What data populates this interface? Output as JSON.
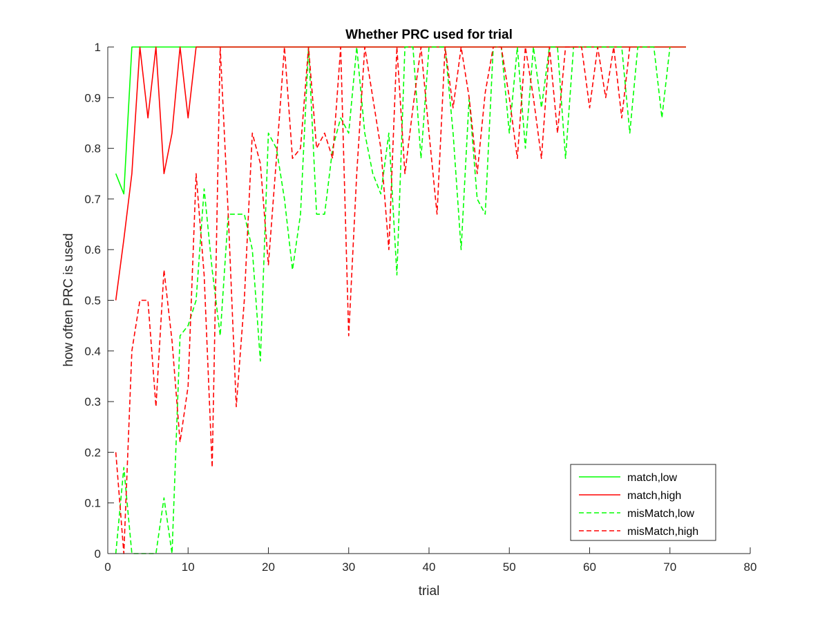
{
  "chart_data": {
    "type": "line",
    "title": "Whether PRC used for trial",
    "xlabel": "trial",
    "ylabel": "how often PRC is used",
    "xlim": [
      0,
      80
    ],
    "ylim": [
      0,
      1
    ],
    "xticks": [
      "0",
      "10",
      "20",
      "30",
      "40",
      "50",
      "60",
      "70",
      "80"
    ],
    "yticks": [
      "0",
      "0.1",
      "0.2",
      "0.3",
      "0.4",
      "0.5",
      "0.6",
      "0.7",
      "0.8",
      "0.9",
      "1"
    ],
    "grid": false,
    "legend_position": "bottom-right",
    "series": [
      {
        "name": "match,low",
        "color": "#00ff00",
        "dash": "solid",
        "x": [
          1,
          2,
          3,
          4,
          5,
          6,
          7,
          8,
          9,
          10,
          11,
          12,
          15,
          20,
          30,
          40,
          50,
          60,
          70,
          72
        ],
        "y": [
          0.75,
          0.71,
          1,
          1,
          1,
          1,
          1,
          1,
          1,
          1,
          1,
          1,
          1,
          1,
          1,
          1,
          1,
          1,
          1,
          1
        ]
      },
      {
        "name": "match,high",
        "color": "#ff0000",
        "dash": "solid",
        "x": [
          1,
          2,
          3,
          4,
          5,
          6,
          7,
          8,
          9,
          10,
          11,
          12,
          15,
          20,
          30,
          40,
          50,
          60,
          70,
          72
        ],
        "y": [
          0.5,
          0.62,
          0.75,
          1,
          0.86,
          1,
          0.75,
          0.83,
          1,
          0.86,
          1,
          1,
          1,
          1,
          1,
          1,
          1,
          1,
          1,
          1
        ]
      },
      {
        "name": "misMatch,low",
        "color": "#00ff00",
        "dash": "dashed",
        "x": [
          1,
          2,
          3,
          4,
          5,
          6,
          7,
          8,
          9,
          10,
          11,
          12,
          13,
          14,
          15,
          16,
          17,
          18,
          19,
          20,
          21,
          22,
          23,
          24,
          25,
          26,
          27,
          28,
          29,
          30,
          31,
          32,
          33,
          34,
          35,
          36,
          37,
          38,
          39,
          40,
          41,
          42,
          43,
          44,
          45,
          46,
          47,
          48,
          49,
          50,
          51,
          52,
          53,
          54,
          55,
          56,
          57,
          58,
          59,
          60,
          61,
          62,
          63,
          64,
          65,
          66,
          67,
          68,
          69,
          70
        ],
        "y": [
          0,
          0.17,
          0,
          0,
          0,
          0,
          0.11,
          0,
          0.43,
          0.45,
          0.5,
          0.72,
          0.56,
          0.43,
          0.67,
          0.67,
          0.67,
          0.6,
          0.38,
          0.83,
          0.8,
          0.7,
          0.56,
          0.67,
          1,
          0.67,
          0.67,
          0.8,
          0.86,
          0.83,
          1,
          0.83,
          0.75,
          0.71,
          0.83,
          0.55,
          1,
          1,
          0.78,
          1,
          1,
          1,
          0.83,
          0.6,
          0.9,
          0.7,
          0.67,
          1,
          1,
          0.83,
          1,
          0.8,
          1,
          0.88,
          1,
          1,
          0.78,
          1,
          1,
          1,
          1,
          1,
          1,
          1,
          0.83,
          1,
          1,
          1,
          0.86,
          1
        ]
      },
      {
        "name": "misMatch,high",
        "color": "#ff0000",
        "dash": "dashed",
        "x": [
          1,
          2,
          3,
          4,
          5,
          6,
          7,
          8,
          9,
          10,
          11,
          12,
          13,
          14,
          15,
          16,
          17,
          18,
          19,
          20,
          21,
          22,
          23,
          24,
          25,
          26,
          27,
          28,
          29,
          30,
          31,
          32,
          33,
          34,
          35,
          36,
          37,
          38,
          39,
          40,
          41,
          42,
          43,
          44,
          45,
          46,
          47,
          48,
          49,
          50,
          51,
          52,
          53,
          54,
          55,
          56,
          57,
          58,
          59,
          60,
          61,
          62,
          63,
          64,
          65
        ],
        "y": [
          0.2,
          0,
          0.4,
          0.5,
          0.5,
          0.29,
          0.56,
          0.42,
          0.22,
          0.33,
          0.75,
          0.55,
          0.17,
          1,
          0.67,
          0.29,
          0.5,
          0.83,
          0.77,
          0.57,
          0.78,
          1,
          0.78,
          0.8,
          1,
          0.8,
          0.83,
          0.78,
          1,
          0.43,
          0.75,
          1,
          0.9,
          0.8,
          0.6,
          1,
          0.75,
          0.88,
          1,
          0.83,
          0.67,
          1,
          0.88,
          1,
          0.9,
          0.75,
          0.91,
          1,
          1,
          0.9,
          0.78,
          1,
          0.9,
          0.78,
          1,
          0.83,
          1,
          1,
          1,
          0.88,
          1,
          0.9,
          1,
          0.86,
          1
        ]
      }
    ]
  }
}
